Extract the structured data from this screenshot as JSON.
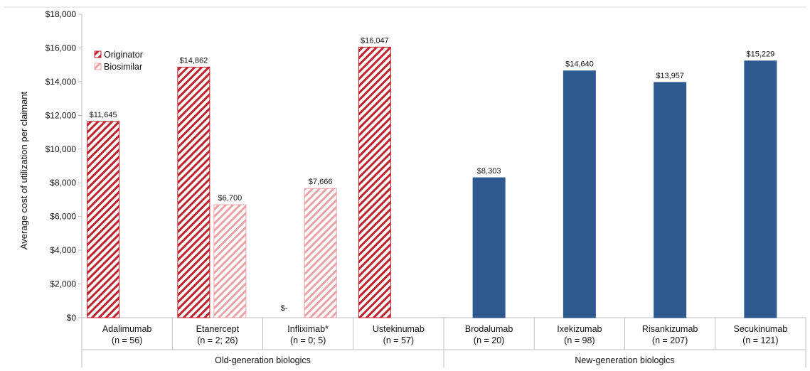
{
  "chart_data": {
    "type": "bar",
    "ylabel": "Average cost of utilization per claimant",
    "ylim": [
      0,
      18000
    ],
    "yticks": [
      0,
      2000,
      4000,
      6000,
      8000,
      10000,
      12000,
      14000,
      16000,
      18000
    ],
    "ytick_labels": [
      "$0",
      "$2,000",
      "$4,000",
      "$6,000",
      "$8,000",
      "$10,000",
      "$12,000",
      "$14,000",
      "$16,000",
      "$18,000"
    ],
    "grid": false,
    "legend_position": "top-left",
    "legend": [
      {
        "name": "Originator",
        "style": "hatched",
        "color": "#c0202a"
      },
      {
        "name": "Biosimilar",
        "style": "hatched",
        "color": "#e8a3a8"
      }
    ],
    "groups": [
      {
        "label": "Old-generation biologics",
        "categories": [
          0,
          1,
          2,
          3
        ]
      },
      {
        "label": "New-generation biologics",
        "categories": [
          4,
          5,
          6,
          7
        ]
      }
    ],
    "categories": [
      {
        "name": "Adalimumab",
        "n": "(n = 56)"
      },
      {
        "name": "Etanercept",
        "n": "(n = 2; 26)"
      },
      {
        "name": "Infliximab*",
        "n": "(n = 0; 5)"
      },
      {
        "name": "Ustekinumab",
        "n": "(n = 57)"
      },
      {
        "name": "Brodalumab",
        "n": "(n = 20)"
      },
      {
        "name": "Ixekizumab",
        "n": "(n = 98)"
      },
      {
        "name": "Risankizumab",
        "n": "(n = 207)"
      },
      {
        "name": "Secukinumab",
        "n": "(n = 121)"
      }
    ],
    "bars": [
      {
        "category": 0,
        "kind": "originator",
        "value": 11645,
        "label": "$11,645"
      },
      {
        "category": 1,
        "kind": "originator",
        "value": 14862,
        "label": "$14,862"
      },
      {
        "category": 1,
        "kind": "biosimilar",
        "value": 6700,
        "label": "$6,700"
      },
      {
        "category": 2,
        "kind": "originator",
        "value": 0,
        "label": "$-"
      },
      {
        "category": 2,
        "kind": "biosimilar",
        "value": 7666,
        "label": "$7,666"
      },
      {
        "category": 3,
        "kind": "originator",
        "value": 16047,
        "label": "$16,047"
      },
      {
        "category": 4,
        "kind": "newgen",
        "value": 8303,
        "label": "$8,303"
      },
      {
        "category": 5,
        "kind": "newgen",
        "value": 14640,
        "label": "$14,640"
      },
      {
        "category": 6,
        "kind": "newgen",
        "value": 13957,
        "label": "$13,957"
      },
      {
        "category": 7,
        "kind": "newgen",
        "value": 15229,
        "label": "$15,229"
      }
    ],
    "colors": {
      "originator": "#c0202a",
      "biosimilar": "#e8a3a8",
      "newgen": "#2f5a8f",
      "axis": "#bfbfbf"
    }
  }
}
